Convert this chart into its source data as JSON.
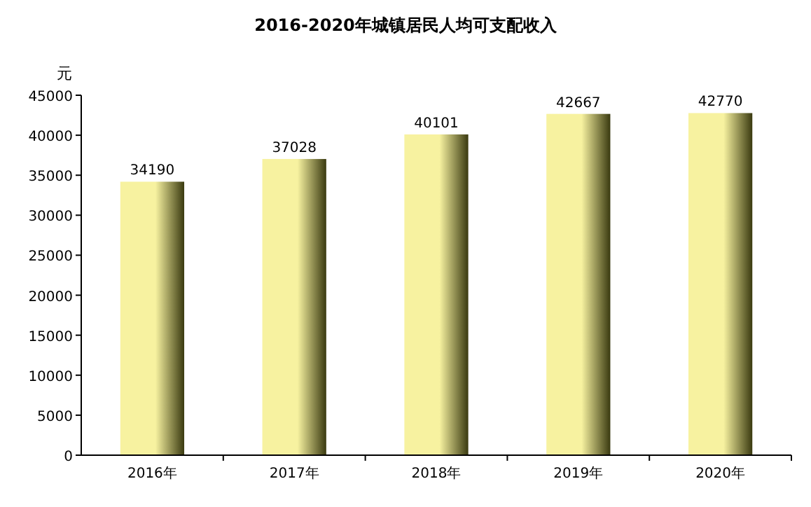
{
  "chart_data": {
    "type": "bar",
    "title": "2016-2020年城镇居民人均可支配收入",
    "ylabel": "元",
    "categories": [
      "2016年",
      "2017年",
      "2018年",
      "2019年",
      "2020年"
    ],
    "values": [
      34190,
      37028,
      40101,
      42667,
      42770
    ],
    "color": "#f7f2a0",
    "ylim": [
      0,
      45000
    ],
    "yticks": [
      0,
      5000,
      10000,
      15000,
      20000,
      25000,
      30000,
      35000,
      40000,
      45000
    ],
    "data_labels": true,
    "grid": false
  }
}
